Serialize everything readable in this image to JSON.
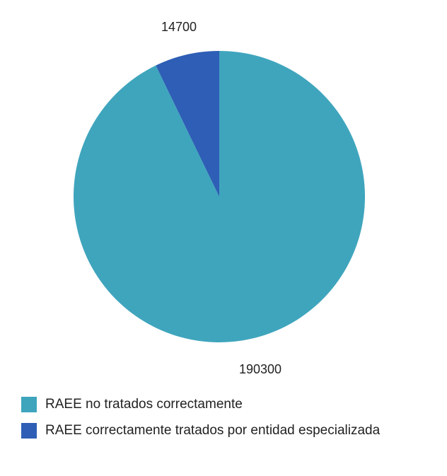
{
  "chart_data": {
    "type": "pie",
    "title": "",
    "categories": [
      "RAEE no tratados correctamente",
      "RAEE correctamente tratados por entidad especializada"
    ],
    "values": [
      190300,
      14700
    ],
    "value_labels": [
      "190300",
      "14700"
    ],
    "colors": [
      "#3FA5BD",
      "#2E5EB5"
    ],
    "legend_placement": "bottom-left"
  }
}
